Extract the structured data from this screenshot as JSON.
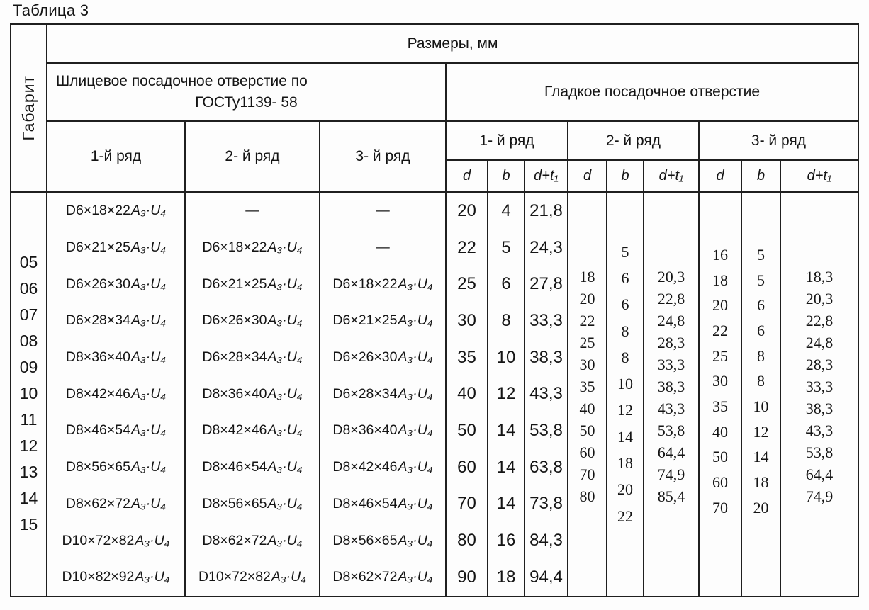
{
  "title": "Таблица 3",
  "header": {
    "gabarit": "Габарит",
    "razmery": "Размеры, мм",
    "spline_title_line1": "Шлицевое посадочное отверстие по",
    "spline_title_line2": "ГОСТу1139- 58",
    "smooth_title": "Гладкое посадочное отверстие",
    "spline_rows": [
      "1-й ряд",
      "2- й ряд",
      "3- й ряд"
    ],
    "smooth_rows": [
      "1- й ряд",
      "2- й ряд",
      "3- й ряд"
    ],
    "subcols": [
      "d",
      "b",
      "d+t₁"
    ]
  },
  "fit_suffix": "A₃·U₄",
  "body": {
    "gabarit": [
      "05",
      "06",
      "07",
      "08",
      "09",
      "10",
      "11",
      "12",
      "13",
      "14",
      "15"
    ],
    "spline_row1": [
      "D6×18×22",
      "D6×21×25",
      "D6×26×30",
      "D6×28×34",
      "D8×36×40",
      "D8×42×46",
      "D8×46×54",
      "D8×56×65",
      "D8×62×72",
      "D10×72×82",
      "D10×82×92"
    ],
    "spline_row2": [
      "—",
      "D6×18×22",
      "D6×21×25",
      "D6×26×30",
      "D6×28×34",
      "D8×36×40",
      "D8×42×46",
      "D8×46×54",
      "D8×56×65",
      "D8×62×72",
      "D10×72×82"
    ],
    "spline_row3": [
      "—",
      "—",
      "D6×18×22",
      "D6×21×25",
      "D6×26×30",
      "D6×28×34",
      "D8×36×40",
      "D8×42×46",
      "D8×46×54",
      "D8×56×65",
      "D8×62×72"
    ],
    "smooth1": {
      "d": [
        "20",
        "22",
        "25",
        "30",
        "35",
        "40",
        "50",
        "60",
        "70",
        "80",
        "90"
      ],
      "b": [
        "4",
        "5",
        "6",
        "8",
        "10",
        "12",
        "14",
        "14",
        "14",
        "16",
        "18"
      ],
      "dt": [
        "21,8",
        "24,3",
        "27,8",
        "33,3",
        "38,3",
        "43,3",
        "53,8",
        "63,8",
        "73,8",
        "84,3",
        "94,4"
      ]
    },
    "smooth2": {
      "d": [
        "18",
        "20",
        "22",
        "25",
        "30",
        "35",
        "40",
        "50",
        "60",
        "70",
        "80"
      ],
      "b": [
        "5",
        "6",
        "6",
        "8",
        "8",
        "10",
        "12",
        "14",
        "18",
        "20",
        "22"
      ],
      "dt": [
        "20,3",
        "22,8",
        "24,8",
        "28,3",
        "33,3",
        "38,3",
        "43,3",
        "53,8",
        "64,4",
        "74,9",
        "85,4"
      ]
    },
    "smooth3": {
      "d": [
        "16",
        "18",
        "20",
        "22",
        "25",
        "30",
        "35",
        "40",
        "50",
        "60",
        "70"
      ],
      "b": [
        "5",
        "5",
        "6",
        "6",
        "8",
        "8",
        "10",
        "12",
        "14",
        "18",
        "20"
      ],
      "dt": [
        "18,3",
        "20,3",
        "22,8",
        "24,8",
        "28,3",
        "33,3",
        "38,3",
        "43,3",
        "53,8",
        "64,4",
        "74,9"
      ]
    }
  }
}
